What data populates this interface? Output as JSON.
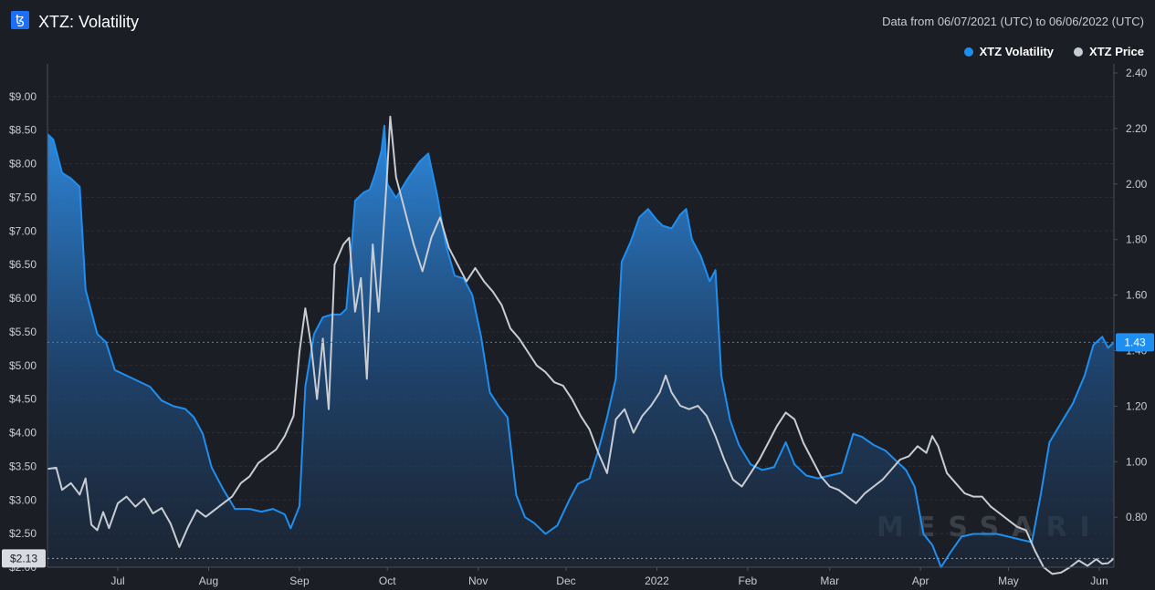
{
  "header": {
    "logo_glyph": "ꜩ",
    "title": "XTZ: Volatility",
    "date_range": "Data from 06/07/2021 (UTC) to 06/06/2022 (UTC)"
  },
  "legend": [
    {
      "label": "XTZ Volatility",
      "color": "#1e8ff0"
    },
    {
      "label": "XTZ Price",
      "color": "#c8ccd3"
    }
  ],
  "watermark": "MESSARI",
  "chart_data": {
    "type": "line",
    "x_axis": {
      "type": "time",
      "range": [
        "2021-06-07",
        "2022-06-06"
      ],
      "tick_labels": [
        {
          "label": "Jul",
          "date": "2021-07-01"
        },
        {
          "label": "Aug",
          "date": "2021-08-01"
        },
        {
          "label": "Sep",
          "date": "2021-09-01"
        },
        {
          "label": "Oct",
          "date": "2021-10-01"
        },
        {
          "label": "Nov",
          "date": "2021-11-01"
        },
        {
          "label": "Dec",
          "date": "2021-12-01"
        },
        {
          "label": "2022",
          "date": "2022-01-01"
        },
        {
          "label": "Feb",
          "date": "2022-02-01"
        },
        {
          "label": "Mar",
          "date": "2022-03-01"
        },
        {
          "label": "Apr",
          "date": "2022-04-01"
        },
        {
          "label": "May",
          "date": "2022-05-01"
        },
        {
          "label": "Jun",
          "date": "2022-06-01"
        }
      ]
    },
    "left_axis": {
      "series": "XTZ Price",
      "ylim": [
        2.0,
        9.35
      ],
      "tick_labels": [
        "$9.00",
        "$8.50",
        "$8.00",
        "$7.50",
        "$7.00",
        "$6.50",
        "$6.00",
        "$5.50",
        "$5.00",
        "$4.50",
        "$4.00",
        "$3.50",
        "$3.00",
        "$2.50",
        "$2.00"
      ],
      "tick_values": [
        9.0,
        8.5,
        8.0,
        7.5,
        7.0,
        6.5,
        6.0,
        5.5,
        5.0,
        4.5,
        4.0,
        3.5,
        3.0,
        2.5,
        2.0
      ],
      "current_label": "$2.13",
      "current_value": 2.13
    },
    "right_axis": {
      "series": "XTZ Volatility",
      "ylim": [
        0.62,
        2.4
      ],
      "tick_labels": [
        "2.40",
        "2.20",
        "2.00",
        "1.80",
        "1.60",
        "1.40",
        "1.20",
        "1.00",
        "0.80"
      ],
      "tick_values": [
        2.4,
        2.2,
        2.0,
        1.8,
        1.6,
        1.4,
        1.2,
        1.0,
        0.8
      ],
      "current_label": "1.43",
      "current_value": 1.43
    },
    "grid": "horizontal",
    "legend_position": "top-right",
    "series": [
      {
        "name": "XTZ Volatility",
        "axis": "right",
        "color": "#1e8ff0",
        "style": "area",
        "points": [
          [
            "2021-06-07",
            2.18
          ],
          [
            "2021-06-09",
            2.16
          ],
          [
            "2021-06-12",
            2.04
          ],
          [
            "2021-06-15",
            2.02
          ],
          [
            "2021-06-18",
            1.99
          ],
          [
            "2021-06-20",
            1.62
          ],
          [
            "2021-06-24",
            1.46
          ],
          [
            "2021-06-27",
            1.43
          ],
          [
            "2021-06-30",
            1.33
          ],
          [
            "2021-07-04",
            1.31
          ],
          [
            "2021-07-08",
            1.29
          ],
          [
            "2021-07-12",
            1.27
          ],
          [
            "2021-07-16",
            1.22
          ],
          [
            "2021-07-20",
            1.2
          ],
          [
            "2021-07-24",
            1.19
          ],
          [
            "2021-07-27",
            1.16
          ],
          [
            "2021-07-30",
            1.1
          ],
          [
            "2021-08-02",
            0.98
          ],
          [
            "2021-08-06",
            0.9
          ],
          [
            "2021-08-10",
            0.83
          ],
          [
            "2021-08-15",
            0.83
          ],
          [
            "2021-08-19",
            0.82
          ],
          [
            "2021-08-23",
            0.83
          ],
          [
            "2021-08-27",
            0.81
          ],
          [
            "2021-08-29",
            0.76
          ],
          [
            "2021-09-01",
            0.84
          ],
          [
            "2021-09-03",
            1.27
          ],
          [
            "2021-09-06",
            1.46
          ],
          [
            "2021-09-09",
            1.52
          ],
          [
            "2021-09-12",
            1.53
          ],
          [
            "2021-09-15",
            1.53
          ],
          [
            "2021-09-17",
            1.55
          ],
          [
            "2021-09-19",
            1.8
          ],
          [
            "2021-09-20",
            1.94
          ],
          [
            "2021-09-23",
            1.97
          ],
          [
            "2021-09-25",
            1.98
          ],
          [
            "2021-09-27",
            2.04
          ],
          [
            "2021-09-29",
            2.12
          ],
          [
            "2021-09-30",
            2.21
          ],
          [
            "2021-10-01",
            2.0
          ],
          [
            "2021-10-04",
            1.95
          ],
          [
            "2021-10-08",
            2.02
          ],
          [
            "2021-10-12",
            2.08
          ],
          [
            "2021-10-15",
            2.11
          ],
          [
            "2021-10-18",
            1.96
          ],
          [
            "2021-10-21",
            1.78
          ],
          [
            "2021-10-24",
            1.67
          ],
          [
            "2021-10-27",
            1.66
          ],
          [
            "2021-10-30",
            1.6
          ],
          [
            "2021-11-02",
            1.45
          ],
          [
            "2021-11-05",
            1.25
          ],
          [
            "2021-11-08",
            1.2
          ],
          [
            "2021-11-11",
            1.16
          ],
          [
            "2021-11-14",
            0.88
          ],
          [
            "2021-11-17",
            0.8
          ],
          [
            "2021-11-20",
            0.78
          ],
          [
            "2021-11-24",
            0.74
          ],
          [
            "2021-11-28",
            0.77
          ],
          [
            "2021-12-02",
            0.86
          ],
          [
            "2021-12-05",
            0.92
          ],
          [
            "2021-12-09",
            0.94
          ],
          [
            "2021-12-12",
            1.04
          ],
          [
            "2021-12-15",
            1.16
          ],
          [
            "2021-12-18",
            1.3
          ],
          [
            "2021-12-20",
            1.72
          ],
          [
            "2021-12-23",
            1.79
          ],
          [
            "2021-12-26",
            1.88
          ],
          [
            "2021-12-29",
            1.91
          ],
          [
            "2022-01-01",
            1.87
          ],
          [
            "2022-01-03",
            1.85
          ],
          [
            "2022-01-06",
            1.84
          ],
          [
            "2022-01-09",
            1.89
          ],
          [
            "2022-01-11",
            1.91
          ],
          [
            "2022-01-13",
            1.8
          ],
          [
            "2022-01-16",
            1.74
          ],
          [
            "2022-01-19",
            1.65
          ],
          [
            "2022-01-21",
            1.69
          ],
          [
            "2022-01-23",
            1.31
          ],
          [
            "2022-01-26",
            1.15
          ],
          [
            "2022-01-29",
            1.06
          ],
          [
            "2022-02-02",
            0.99
          ],
          [
            "2022-02-06",
            0.97
          ],
          [
            "2022-02-10",
            0.98
          ],
          [
            "2022-02-14",
            1.07
          ],
          [
            "2022-02-17",
            0.99
          ],
          [
            "2022-02-21",
            0.95
          ],
          [
            "2022-02-25",
            0.94
          ],
          [
            "2022-03-01",
            0.95
          ],
          [
            "2022-03-05",
            0.96
          ],
          [
            "2022-03-09",
            1.1
          ],
          [
            "2022-03-12",
            1.09
          ],
          [
            "2022-03-16",
            1.06
          ],
          [
            "2022-03-20",
            1.04
          ],
          [
            "2022-03-24",
            1.0
          ],
          [
            "2022-03-27",
            0.97
          ],
          [
            "2022-03-30",
            0.91
          ],
          [
            "2022-04-02",
            0.74
          ],
          [
            "2022-04-05",
            0.7
          ],
          [
            "2022-04-08",
            0.62
          ],
          [
            "2022-04-11",
            0.67
          ],
          [
            "2022-04-15",
            0.73
          ],
          [
            "2022-04-19",
            0.74
          ],
          [
            "2022-04-23",
            0.74
          ],
          [
            "2022-04-27",
            0.74
          ],
          [
            "2022-05-01",
            0.73
          ],
          [
            "2022-05-05",
            0.72
          ],
          [
            "2022-05-09",
            0.71
          ],
          [
            "2022-05-12",
            0.88
          ],
          [
            "2022-05-15",
            1.07
          ],
          [
            "2022-05-19",
            1.14
          ],
          [
            "2022-05-23",
            1.21
          ],
          [
            "2022-05-27",
            1.31
          ],
          [
            "2022-05-30",
            1.42
          ],
          [
            "2022-06-02",
            1.45
          ],
          [
            "2022-06-04",
            1.41
          ],
          [
            "2022-06-06",
            1.43
          ]
        ]
      },
      {
        "name": "XTZ Price",
        "axis": "left",
        "color": "#c8ccd3",
        "style": "line",
        "points": [
          [
            "2021-06-07",
            3.46
          ],
          [
            "2021-06-10",
            3.48
          ],
          [
            "2021-06-12",
            3.15
          ],
          [
            "2021-06-15",
            3.25
          ],
          [
            "2021-06-18",
            3.08
          ],
          [
            "2021-06-20",
            3.32
          ],
          [
            "2021-06-22",
            2.63
          ],
          [
            "2021-06-24",
            2.55
          ],
          [
            "2021-06-26",
            2.82
          ],
          [
            "2021-06-28",
            2.58
          ],
          [
            "2021-07-01",
            2.95
          ],
          [
            "2021-07-04",
            3.05
          ],
          [
            "2021-07-07",
            2.9
          ],
          [
            "2021-07-10",
            3.02
          ],
          [
            "2021-07-13",
            2.8
          ],
          [
            "2021-07-16",
            2.88
          ],
          [
            "2021-07-19",
            2.65
          ],
          [
            "2021-07-22",
            2.3
          ],
          [
            "2021-07-25",
            2.6
          ],
          [
            "2021-07-28",
            2.85
          ],
          [
            "2021-07-31",
            2.75
          ],
          [
            "2021-08-03",
            2.85
          ],
          [
            "2021-08-06",
            2.95
          ],
          [
            "2021-08-09",
            3.05
          ],
          [
            "2021-08-12",
            3.25
          ],
          [
            "2021-08-15",
            3.35
          ],
          [
            "2021-08-18",
            3.55
          ],
          [
            "2021-08-21",
            3.65
          ],
          [
            "2021-08-24",
            3.75
          ],
          [
            "2021-08-27",
            3.95
          ],
          [
            "2021-08-30",
            4.25
          ],
          [
            "2021-09-01",
            5.2
          ],
          [
            "2021-09-03",
            5.85
          ],
          [
            "2021-09-05",
            5.3
          ],
          [
            "2021-09-07",
            4.5
          ],
          [
            "2021-09-09",
            5.4
          ],
          [
            "2021-09-11",
            4.35
          ],
          [
            "2021-09-13",
            6.5
          ],
          [
            "2021-09-16",
            6.8
          ],
          [
            "2021-09-18",
            6.9
          ],
          [
            "2021-09-20",
            5.8
          ],
          [
            "2021-09-22",
            6.3
          ],
          [
            "2021-09-24",
            4.8
          ],
          [
            "2021-09-26",
            6.8
          ],
          [
            "2021-09-28",
            5.8
          ],
          [
            "2021-09-30",
            7.2
          ],
          [
            "2021-10-01",
            7.9
          ],
          [
            "2021-10-02",
            8.7
          ],
          [
            "2021-10-04",
            7.8
          ],
          [
            "2021-10-07",
            7.3
          ],
          [
            "2021-10-10",
            6.8
          ],
          [
            "2021-10-13",
            6.4
          ],
          [
            "2021-10-16",
            6.9
          ],
          [
            "2021-10-19",
            7.2
          ],
          [
            "2021-10-22",
            6.75
          ],
          [
            "2021-10-25",
            6.5
          ],
          [
            "2021-10-28",
            6.25
          ],
          [
            "2021-10-31",
            6.45
          ],
          [
            "2021-11-03",
            6.25
          ],
          [
            "2021-11-06",
            6.1
          ],
          [
            "2021-11-09",
            5.9
          ],
          [
            "2021-11-12",
            5.55
          ],
          [
            "2021-11-15",
            5.4
          ],
          [
            "2021-11-18",
            5.2
          ],
          [
            "2021-11-21",
            5.0
          ],
          [
            "2021-11-24",
            4.9
          ],
          [
            "2021-11-27",
            4.75
          ],
          [
            "2021-11-30",
            4.7
          ],
          [
            "2021-12-03",
            4.5
          ],
          [
            "2021-12-06",
            4.25
          ],
          [
            "2021-12-09",
            4.05
          ],
          [
            "2021-12-12",
            3.7
          ],
          [
            "2021-12-15",
            3.4
          ],
          [
            "2021-12-18",
            4.2
          ],
          [
            "2021-12-21",
            4.35
          ],
          [
            "2021-12-24",
            4.0
          ],
          [
            "2021-12-27",
            4.25
          ],
          [
            "2021-12-30",
            4.4
          ],
          [
            "2022-01-02",
            4.6
          ],
          [
            "2022-01-04",
            4.85
          ],
          [
            "2022-01-06",
            4.6
          ],
          [
            "2022-01-09",
            4.4
          ],
          [
            "2022-01-12",
            4.35
          ],
          [
            "2022-01-15",
            4.4
          ],
          [
            "2022-01-18",
            4.25
          ],
          [
            "2022-01-21",
            3.95
          ],
          [
            "2022-01-24",
            3.6
          ],
          [
            "2022-01-27",
            3.3
          ],
          [
            "2022-01-30",
            3.2
          ],
          [
            "2022-02-02",
            3.4
          ],
          [
            "2022-02-05",
            3.6
          ],
          [
            "2022-02-08",
            3.85
          ],
          [
            "2022-02-11",
            4.1
          ],
          [
            "2022-02-14",
            4.3
          ],
          [
            "2022-02-17",
            4.2
          ],
          [
            "2022-02-20",
            3.85
          ],
          [
            "2022-02-23",
            3.6
          ],
          [
            "2022-02-26",
            3.35
          ],
          [
            "2022-03-01",
            3.2
          ],
          [
            "2022-03-04",
            3.15
          ],
          [
            "2022-03-07",
            3.05
          ],
          [
            "2022-03-10",
            2.95
          ],
          [
            "2022-03-13",
            3.1
          ],
          [
            "2022-03-16",
            3.2
          ],
          [
            "2022-03-19",
            3.3
          ],
          [
            "2022-03-22",
            3.45
          ],
          [
            "2022-03-25",
            3.6
          ],
          [
            "2022-03-28",
            3.65
          ],
          [
            "2022-03-31",
            3.8
          ],
          [
            "2022-04-03",
            3.7
          ],
          [
            "2022-04-05",
            3.95
          ],
          [
            "2022-04-07",
            3.8
          ],
          [
            "2022-04-10",
            3.4
          ],
          [
            "2022-04-13",
            3.25
          ],
          [
            "2022-04-16",
            3.1
          ],
          [
            "2022-04-19",
            3.05
          ],
          [
            "2022-04-22",
            3.05
          ],
          [
            "2022-04-25",
            2.9
          ],
          [
            "2022-04-28",
            2.8
          ],
          [
            "2022-05-01",
            2.7
          ],
          [
            "2022-05-04",
            2.6
          ],
          [
            "2022-05-07",
            2.55
          ],
          [
            "2022-05-10",
            2.25
          ],
          [
            "2022-05-13",
            2.0
          ],
          [
            "2022-05-16",
            1.9
          ],
          [
            "2022-05-19",
            1.92
          ],
          [
            "2022-05-22",
            2.0
          ],
          [
            "2022-05-25",
            2.1
          ],
          [
            "2022-05-28",
            2.02
          ],
          [
            "2022-05-31",
            2.12
          ],
          [
            "2022-06-02",
            2.05
          ],
          [
            "2022-06-04",
            2.06
          ],
          [
            "2022-06-06",
            2.13
          ]
        ]
      }
    ]
  }
}
